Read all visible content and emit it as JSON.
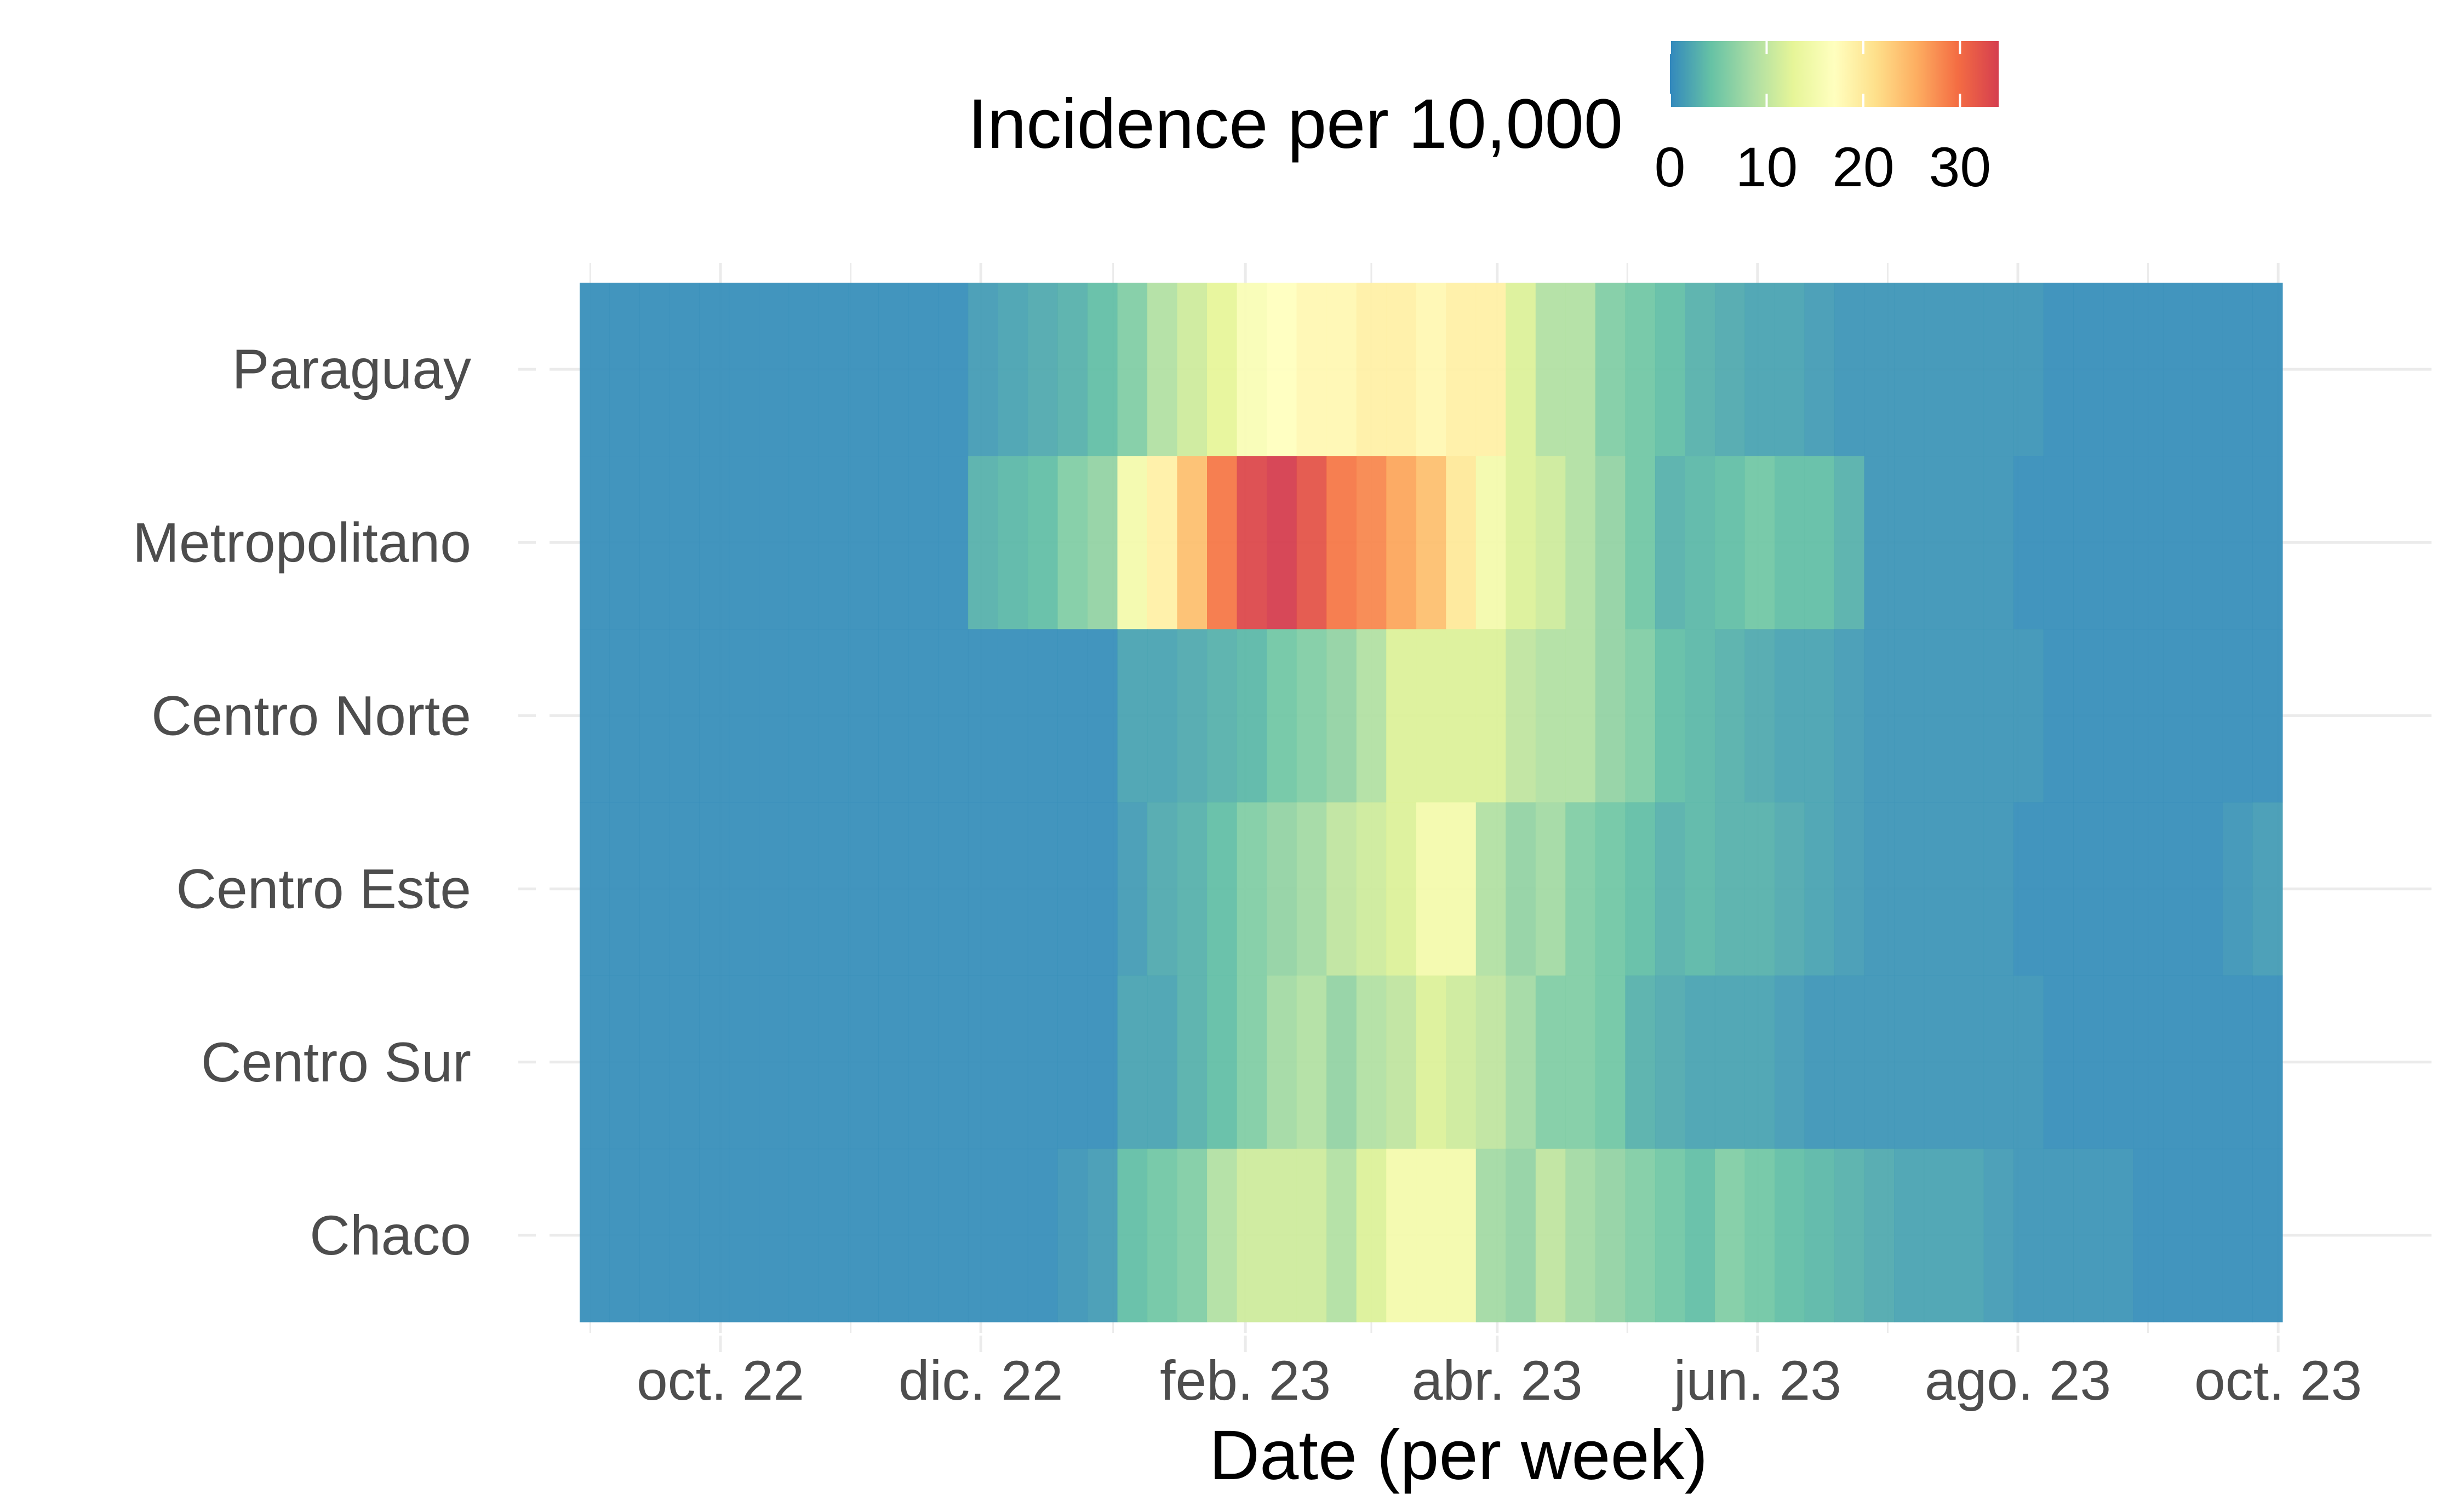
{
  "chart_data": {
    "type": "heatmap",
    "xlabel": "Date (per week)",
    "ylabel": "",
    "legend": {
      "title": "Incidence per 10,000",
      "position": "top",
      "ticks": [
        0,
        10,
        20,
        30
      ],
      "range": [
        0,
        34
      ],
      "colors": [
        "#3288bd",
        "#66c2a5",
        "#abdda4",
        "#e6f598",
        "#ffffbf",
        "#fee08b",
        "#fdae61",
        "#f46d43",
        "#d53e4f"
      ]
    },
    "x_start": "2022-08-29",
    "x_end": "2023-10-16",
    "x_ticks": [
      {
        "date": "2022-10-01",
        "label": "oct. 22"
      },
      {
        "date": "2022-12-01",
        "label": "dic. 22"
      },
      {
        "date": "2023-02-01",
        "label": "feb. 23"
      },
      {
        "date": "2023-04-01",
        "label": "abr. 23"
      },
      {
        "date": "2023-06-01",
        "label": "jun. 23"
      },
      {
        "date": "2023-08-01",
        "label": "ago. 23"
      },
      {
        "date": "2023-10-01",
        "label": "oct. 23"
      }
    ],
    "rows": [
      {
        "name": "Paraguay",
        "values": [
          0.5,
          0.5,
          0.5,
          0.5,
          0.5,
          0.5,
          0.5,
          0.5,
          0.5,
          0.5,
          0.5,
          0.5,
          0.5,
          1.5,
          2,
          2.5,
          3,
          4,
          6,
          9,
          11,
          13,
          16,
          17,
          18,
          18,
          19,
          19,
          18,
          19,
          19,
          12,
          9,
          9,
          6,
          5,
          4,
          3,
          2.5,
          2,
          2,
          1.5,
          1,
          1,
          1,
          1,
          1,
          1,
          1,
          0.5,
          0.5,
          0.5,
          0.5,
          0.5,
          0.5,
          0.5,
          0.5
        ]
      },
      {
        "name": "Metropolitano",
        "values": [
          0.5,
          0.5,
          0.5,
          0.5,
          0.5,
          0.5,
          0.5,
          0.5,
          0.5,
          0.5,
          0.5,
          0.5,
          0.5,
          3,
          3.5,
          4,
          6,
          7,
          15,
          19,
          24,
          29,
          33,
          34,
          32,
          29,
          28,
          26,
          24,
          20,
          15,
          12,
          11,
          9,
          7,
          5,
          3,
          3.5,
          4,
          5,
          4,
          4,
          3,
          1,
          1,
          1,
          1,
          1,
          0.5,
          0.5,
          0.5,
          0.5,
          0.5,
          0.5,
          0.5,
          0.5,
          0.5
        ]
      },
      {
        "name": "Centro Norte",
        "values": [
          0.5,
          0.5,
          0.5,
          0.5,
          0.5,
          0.5,
          0.5,
          0.5,
          0.5,
          0.5,
          0.5,
          0.5,
          0.5,
          0.5,
          0.5,
          0.5,
          0.5,
          0.5,
          2,
          2,
          2.5,
          3,
          3.5,
          5,
          6,
          7,
          9,
          12,
          12,
          12,
          12,
          10,
          9,
          9,
          7,
          6,
          4,
          3.5,
          3,
          2.5,
          2,
          2,
          1.5,
          1,
          1,
          1,
          1,
          1,
          1,
          0.5,
          0.5,
          0.5,
          0.5,
          0.5,
          0.5,
          0.5,
          0.5
        ]
      },
      {
        "name": "Centro Este",
        "values": [
          0.5,
          0.5,
          0.5,
          0.5,
          0.5,
          0.5,
          0.5,
          0.5,
          0.5,
          0.5,
          0.5,
          0.5,
          0.5,
          0.5,
          0.5,
          0.5,
          0.5,
          0.5,
          1.5,
          2.5,
          3,
          4,
          6,
          7,
          8,
          10,
          11,
          12,
          15,
          15,
          9,
          7,
          8,
          6,
          5,
          4,
          3,
          3.5,
          3,
          3,
          2.5,
          2,
          1.5,
          1,
          1,
          1,
          1,
          1,
          0.5,
          0.5,
          0.5,
          0.5,
          0.5,
          0.5,
          0.5,
          1,
          1.5
        ]
      },
      {
        "name": "Centro Sur",
        "values": [
          0.5,
          0.5,
          0.5,
          0.5,
          0.5,
          0.5,
          0.5,
          0.5,
          0.5,
          0.5,
          0.5,
          0.5,
          0.5,
          0.5,
          0.5,
          0.5,
          0.5,
          0.5,
          2,
          2,
          3,
          4,
          6,
          8,
          9,
          7,
          9,
          10,
          12,
          11,
          10,
          8,
          6,
          6,
          5,
          3,
          2.5,
          2,
          2,
          2,
          1.5,
          1,
          1,
          1,
          1,
          1,
          1,
          1,
          1,
          0.5,
          0.5,
          0.5,
          0.5,
          0.5,
          0.5,
          0.5,
          0.5
        ]
      },
      {
        "name": "Chaco",
        "values": [
          0.5,
          0.5,
          0.5,
          0.5,
          0.5,
          0.5,
          0.5,
          0.5,
          0.5,
          0.5,
          0.5,
          0.5,
          0.5,
          0.5,
          0.5,
          0.5,
          1,
          1.5,
          4,
          5,
          6,
          9,
          11,
          11,
          11,
          9,
          12,
          15,
          15,
          15,
          8,
          7,
          10,
          8,
          7,
          6,
          5,
          4,
          6,
          5,
          4,
          3.5,
          3,
          2.5,
          2,
          2,
          2,
          1.5,
          1,
          1,
          1,
          1,
          0.5,
          0.5,
          0.5,
          0.5,
          0.5
        ]
      }
    ]
  }
}
